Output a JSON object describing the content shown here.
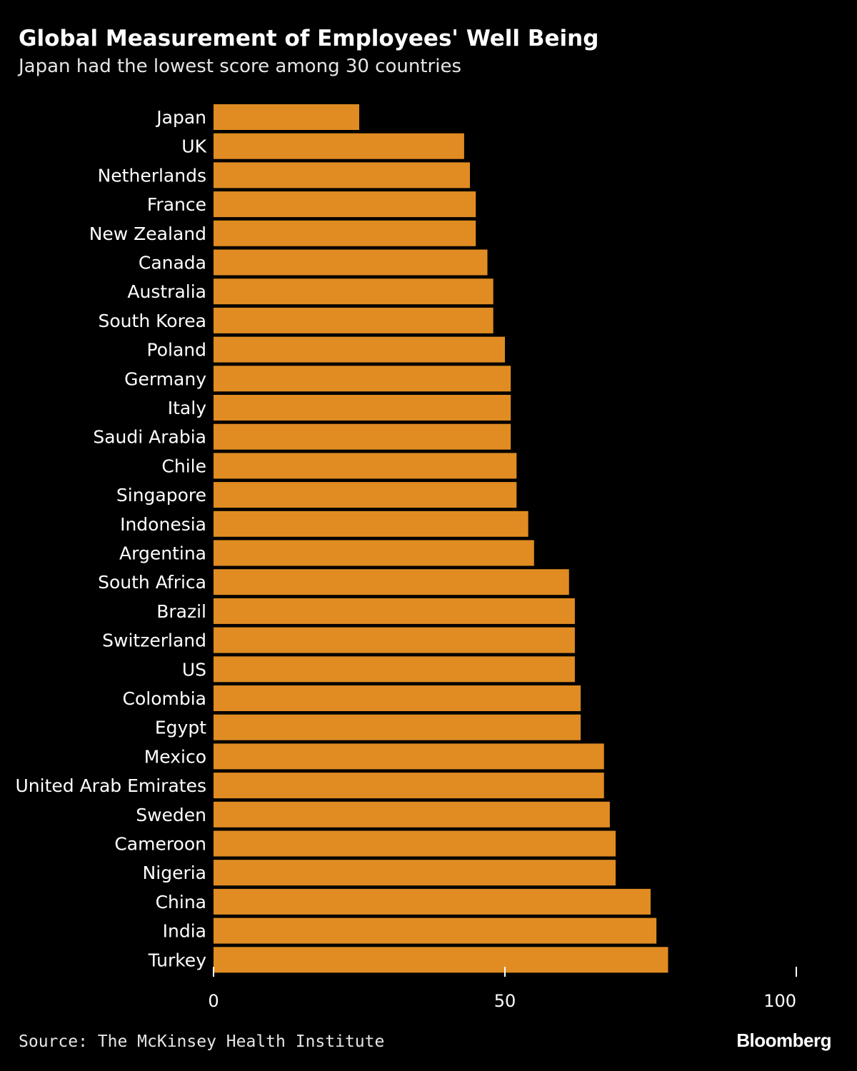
{
  "header": {
    "title": "Global Measurement of Employees' Well Being",
    "subtitle": "Japan had the lowest score among 30 countries"
  },
  "footer": {
    "source": "Source: The McKinsey Health Institute",
    "brand": "Bloomberg"
  },
  "colors": {
    "background": "#000000",
    "bar": "#e08c22",
    "text": "#ffffff"
  },
  "chart_data": {
    "type": "bar",
    "orientation": "horizontal",
    "title": "Global Measurement of Employees' Well Being",
    "subtitle": "Japan had the lowest score among 30 countries",
    "xlabel": "",
    "ylabel": "",
    "xlim": [
      0,
      100
    ],
    "x_ticks": [
      0,
      50,
      100
    ],
    "x_tick_labels": [
      "0",
      "50",
      "100"
    ],
    "grid": false,
    "legend": "none",
    "categories": [
      "Japan",
      "UK",
      "Netherlands",
      "France",
      "New Zealand",
      "Canada",
      "Australia",
      "South Korea",
      "Poland",
      "Germany",
      "Italy",
      "Saudi Arabia",
      "Chile",
      "Singapore",
      "Indonesia",
      "Argentina",
      "South Africa",
      "Brazil",
      "Switzerland",
      "US",
      "Colombia",
      "Egypt",
      "Mexico",
      "United Arab Emirates",
      "Sweden",
      "Cameroon",
      "Nigeria",
      "China",
      "India",
      "Turkey"
    ],
    "values": [
      25,
      43,
      44,
      45,
      45,
      47,
      48,
      48,
      50,
      51,
      51,
      51,
      52,
      52,
      54,
      55,
      61,
      62,
      62,
      62,
      63,
      63,
      67,
      67,
      68,
      69,
      69,
      75,
      76,
      78
    ]
  }
}
